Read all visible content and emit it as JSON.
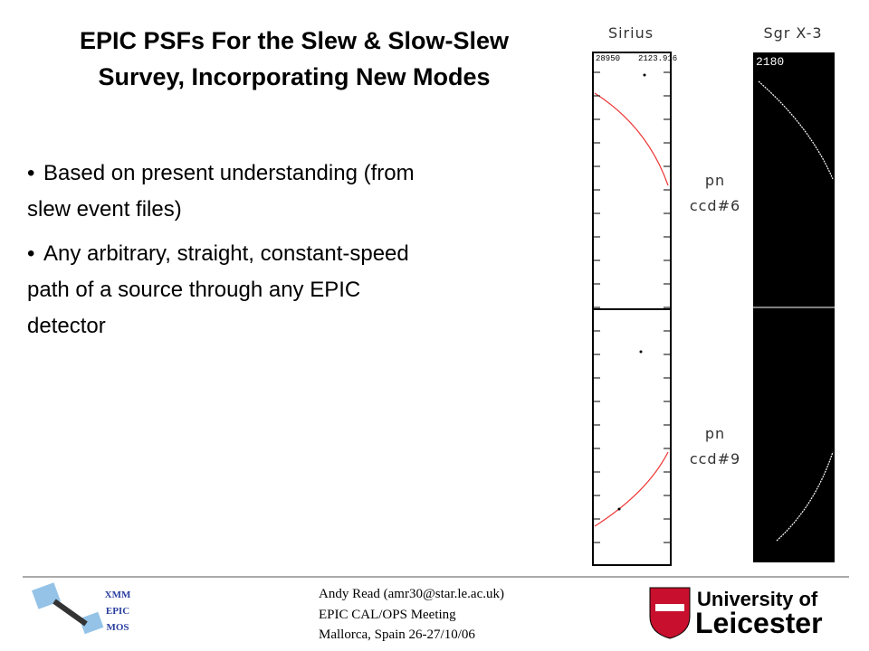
{
  "header": {
    "title_lines": [
      "EPIC PSFs For the Slew & Slow-Slew",
      "Survey, Incorporating New Modes"
    ]
  },
  "bullets": [
    [
      "Based on present understanding (from",
      "slew event files)"
    ],
    [
      "Any arbitrary, straight, constant-speed",
      "path of a source through any EPIC",
      "detector"
    ]
  ],
  "images": {
    "columns": [
      "Sirius",
      "Sgr X-3"
    ],
    "rows": [
      [
        "pn",
        "ccd#6"
      ],
      [
        "pn",
        "ccd#9"
      ]
    ],
    "sirius_labels": [
      28950,
      2123.916
    ],
    "sgr_label": 2180
  },
  "footer": {
    "badge": [
      "XMM",
      "EPIC",
      "MOS"
    ],
    "lines": [
      "Andy Read (amr30@star.le.ac.uk)",
      "EPIC CAL/OPS Meeting",
      "Mallorca, Spain 26-27/10/06"
    ],
    "logo": [
      "University of",
      "Leicester"
    ]
  }
}
